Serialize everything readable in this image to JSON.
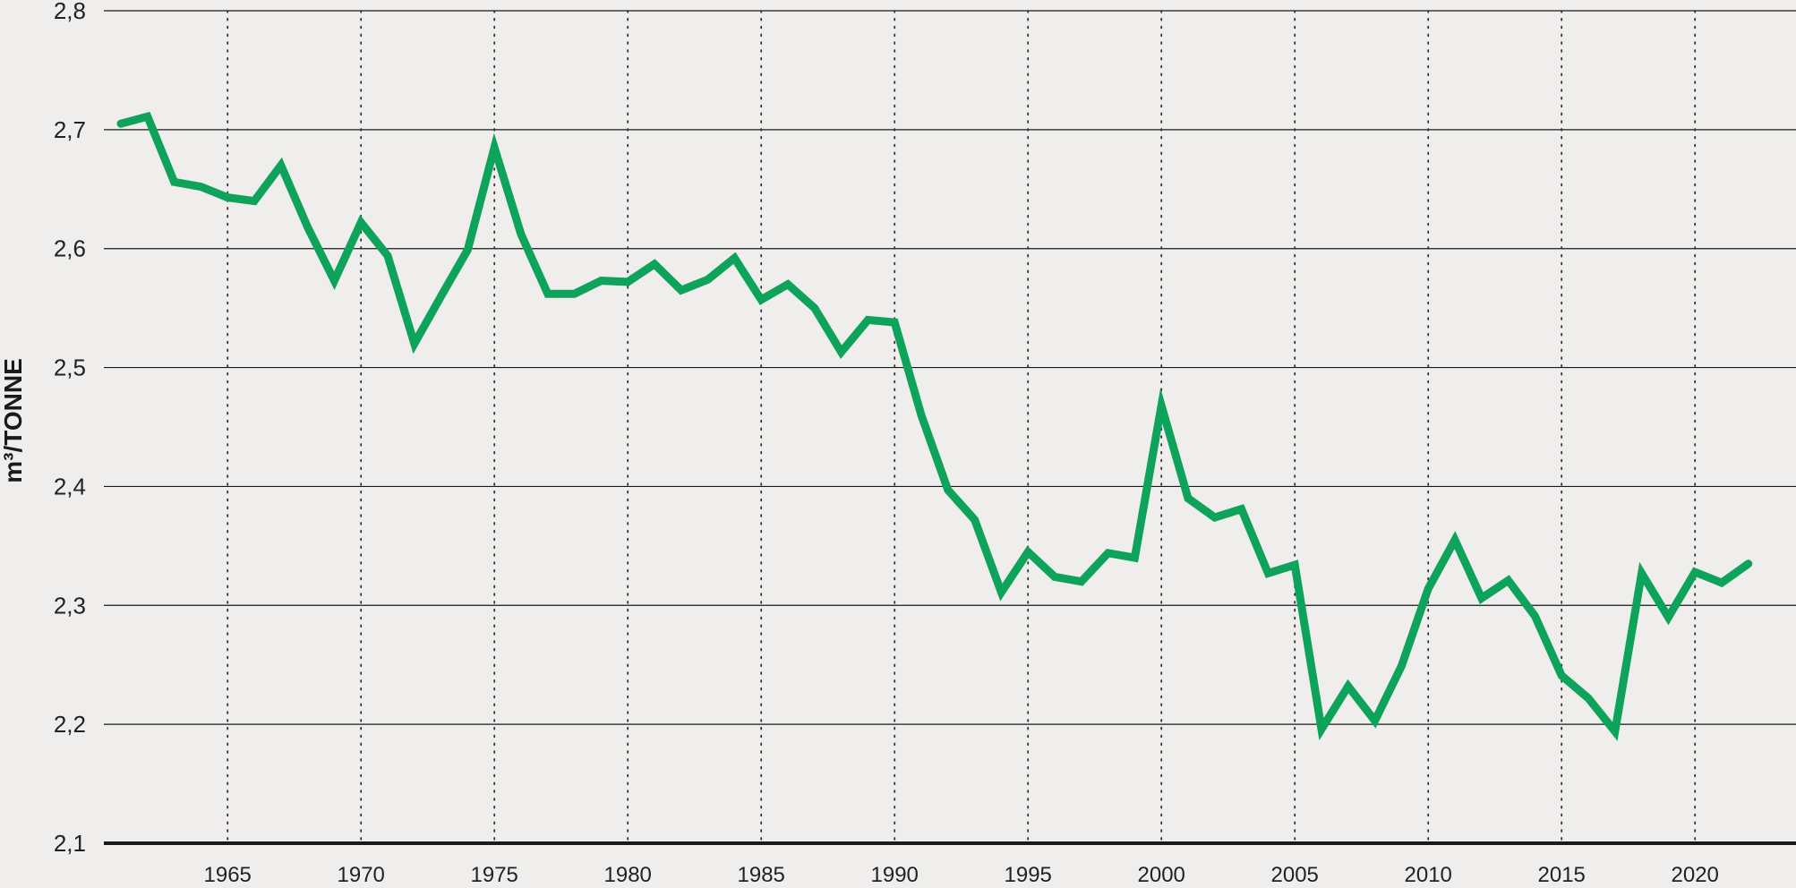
{
  "chart_data": {
    "type": "line",
    "title": "",
    "xlabel": "",
    "ylabel": "m³/TONNE",
    "ylim": [
      2.1,
      2.8
    ],
    "y_ticks": [
      "2,1",
      "2,2",
      "2,3",
      "2,4",
      "2,5",
      "2,6",
      "2,7",
      "2,8"
    ],
    "y_tick_values": [
      2.1,
      2.2,
      2.3,
      2.4,
      2.5,
      2.6,
      2.7,
      2.8
    ],
    "xlim": [
      1960,
      2023
    ],
    "x_ticks": [
      "1965",
      "1970",
      "1975",
      "1980",
      "1985",
      "1990",
      "1995",
      "2000",
      "2005",
      "2010",
      "2015",
      "2020"
    ],
    "x_tick_values": [
      1965,
      1970,
      1975,
      1980,
      1985,
      1990,
      1995,
      2000,
      2005,
      2010,
      2015,
      2020
    ],
    "grid": {
      "horizontal": "solid",
      "vertical": "dotted"
    },
    "series": [
      {
        "color": "#0ea35a",
        "x": [
          1961,
          1962,
          1963,
          1964,
          1965,
          1966,
          1967,
          1968,
          1969,
          1970,
          1971,
          1972,
          1973,
          1974,
          1975,
          1976,
          1977,
          1978,
          1979,
          1980,
          1981,
          1982,
          1983,
          1984,
          1985,
          1986,
          1987,
          1988,
          1989,
          1990,
          1991,
          1992,
          1993,
          1994,
          1995,
          1996,
          1997,
          1998,
          1999,
          2000,
          2001,
          2002,
          2003,
          2004,
          2005,
          2006,
          2007,
          2008,
          2009,
          2010,
          2011,
          2012,
          2013,
          2014,
          2015,
          2016,
          2017,
          2018,
          2019,
          2020,
          2021,
          2022
        ],
        "values": [
          2.705,
          2.711,
          2.656,
          2.652,
          2.643,
          2.64,
          2.67,
          2.618,
          2.573,
          2.622,
          2.594,
          2.52,
          2.56,
          2.599,
          2.685,
          2.612,
          2.562,
          2.562,
          2.573,
          2.572,
          2.587,
          2.565,
          2.574,
          2.592,
          2.557,
          2.57,
          2.55,
          2.513,
          2.54,
          2.538,
          2.46,
          2.397,
          2.372,
          2.311,
          2.345,
          2.324,
          2.32,
          2.344,
          2.34,
          2.468,
          2.39,
          2.374,
          2.381,
          2.327,
          2.334,
          2.196,
          2.232,
          2.203,
          2.249,
          2.314,
          2.355,
          2.306,
          2.321,
          2.291,
          2.241,
          2.222,
          2.194,
          2.327,
          2.29,
          2.328,
          2.319,
          2.335
        ]
      }
    ]
  }
}
